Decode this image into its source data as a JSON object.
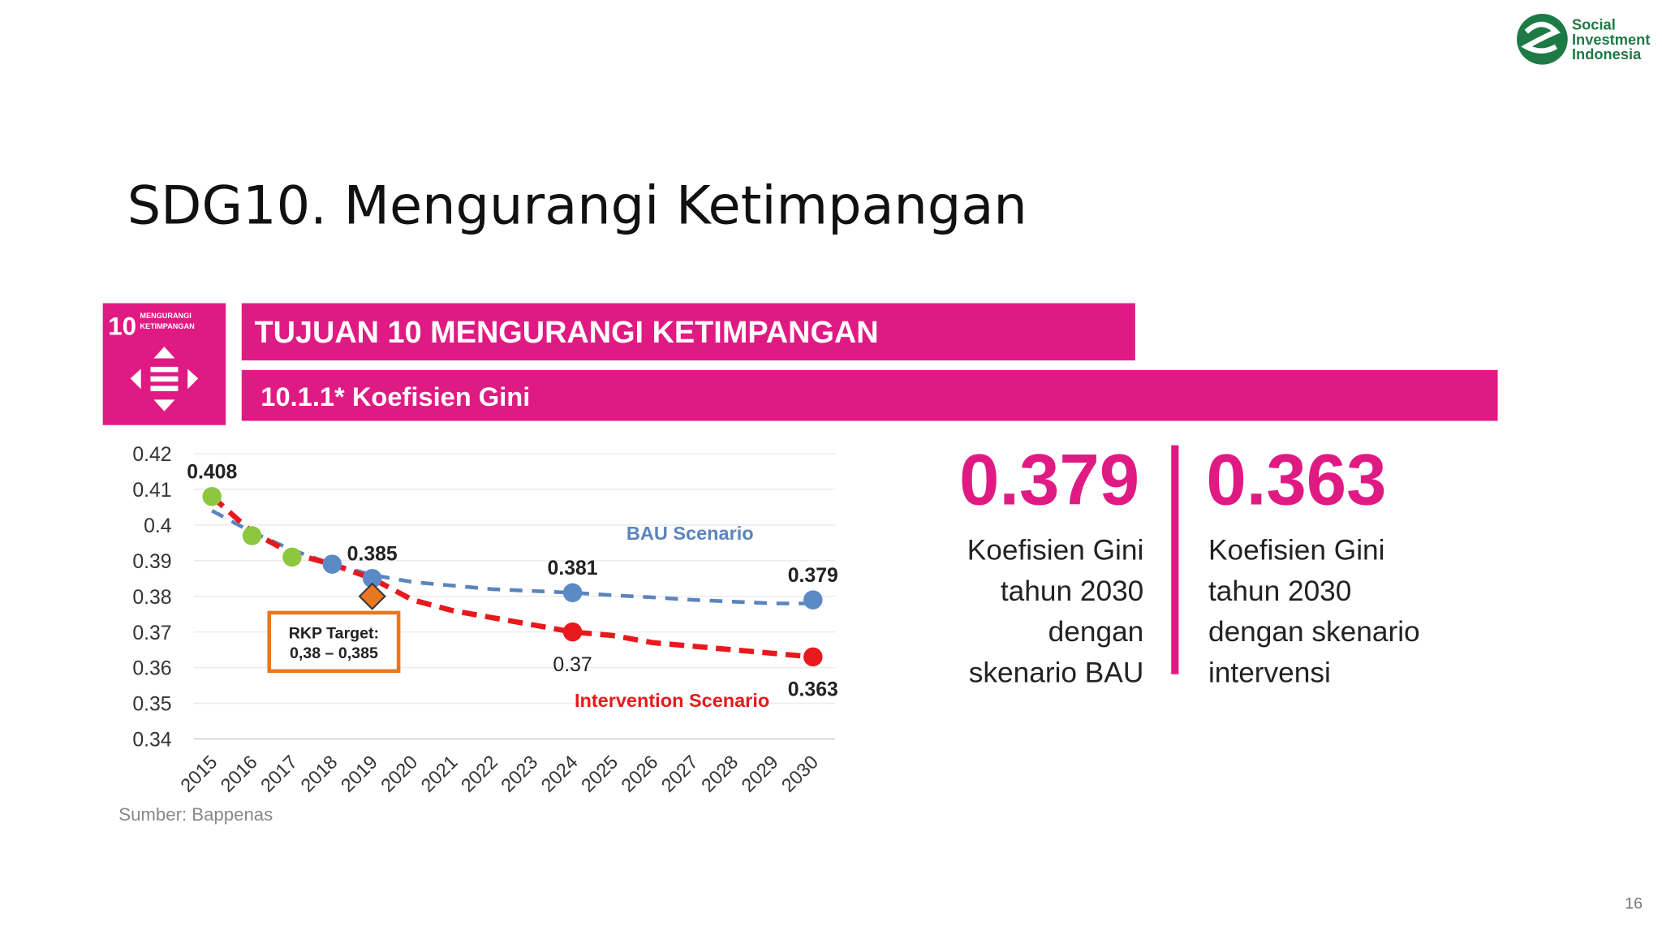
{
  "logo": [
    "Social",
    "Investment",
    "Indonesia"
  ],
  "slide_title": "SDG10. Mengurangi Ketimpangan",
  "goal_icon": {
    "number": "10",
    "text": [
      "MENGURANGI",
      "KETIMPANGAN"
    ]
  },
  "header": "TUJUAN 10 MENGURANGI KETIMPANGAN",
  "subheader": "10.1.1* Koefisien Gini",
  "stats": [
    {
      "value": "0.379",
      "lines": [
        "Koefisien Gini",
        "tahun 2030",
        "dengan",
        "skenario BAU"
      ]
    },
    {
      "value": "0.363",
      "lines": [
        "Koefisien Gini",
        "tahun 2030",
        "dengan skenario",
        "intervensi"
      ]
    }
  ],
  "page_number": "16",
  "chart_data": {
    "type": "line",
    "categories": [
      "2015",
      "2016",
      "2017",
      "2018",
      "2019",
      "2020",
      "2021",
      "2022",
      "2023",
      "2024",
      "2025",
      "2026",
      "2027",
      "2028",
      "2029",
      "2030"
    ],
    "ylim": [
      0.34,
      0.42
    ],
    "yticks": [
      0.42,
      0.41,
      0.4,
      0.39,
      0.38,
      0.37,
      0.36,
      0.35,
      0.34
    ],
    "grid": true,
    "series": [
      {
        "name": "BAU Scenario",
        "color": "#5b84bd",
        "dashed": true,
        "markers": false,
        "values": [
          0.404,
          0.398,
          0.393,
          0.389,
          0.386,
          0.384,
          0.383,
          0.382,
          0.3815,
          0.381,
          0.3803,
          0.3797,
          0.379,
          0.3785,
          0.378,
          0.378
        ]
      },
      {
        "name": "Intervention Scenario",
        "color": "#e8191c",
        "dashed": true,
        "markers": false,
        "values": [
          0.408,
          0.398,
          0.392,
          0.389,
          0.385,
          0.379,
          0.376,
          0.374,
          0.372,
          0.37,
          0.369,
          0.367,
          0.366,
          0.365,
          0.364,
          0.363
        ]
      },
      {
        "color": "#8dc63f",
        "markers": true,
        "label_position": "above",
        "values": [
          0.408,
          0.397,
          0.391,
          null,
          null,
          null,
          null,
          null,
          null,
          null,
          null,
          null,
          null,
          null,
          null,
          null
        ],
        "value_labels": [
          "0.408",
          null,
          null,
          null,
          null,
          null,
          null,
          null,
          null,
          null,
          null,
          null,
          null,
          null,
          null,
          null
        ]
      },
      {
        "color": "#5b8ac6",
        "markers": true,
        "label_position": "above",
        "values": [
          null,
          null,
          null,
          0.389,
          0.385,
          null,
          null,
          null,
          null,
          0.381,
          null,
          null,
          null,
          null,
          null,
          0.379
        ],
        "value_labels": [
          null,
          null,
          null,
          null,
          "0.385",
          null,
          null,
          null,
          null,
          "0.381",
          null,
          null,
          null,
          null,
          null,
          "0.379"
        ]
      },
      {
        "color": "#e8191c",
        "markers": true,
        "label_position": "below",
        "values": [
          null,
          null,
          null,
          null,
          null,
          null,
          null,
          null,
          null,
          0.37,
          null,
          null,
          null,
          null,
          null,
          0.363
        ],
        "value_labels": [
          null,
          null,
          null,
          null,
          null,
          null,
          null,
          null,
          null,
          "0.37",
          null,
          null,
          null,
          null,
          null,
          "0.363"
        ]
      },
      {
        "color": "#e87722",
        "markers": true,
        "marker": "diamond",
        "values": [
          null,
          null,
          null,
          null,
          0.38,
          null,
          null,
          null,
          null,
          null,
          null,
          null,
          null,
          null,
          null,
          null
        ]
      }
    ],
    "annotations": [
      "RKP Target:",
      "0,38 – 0,385"
    ],
    "source": "Sumber: Bappenas"
  }
}
